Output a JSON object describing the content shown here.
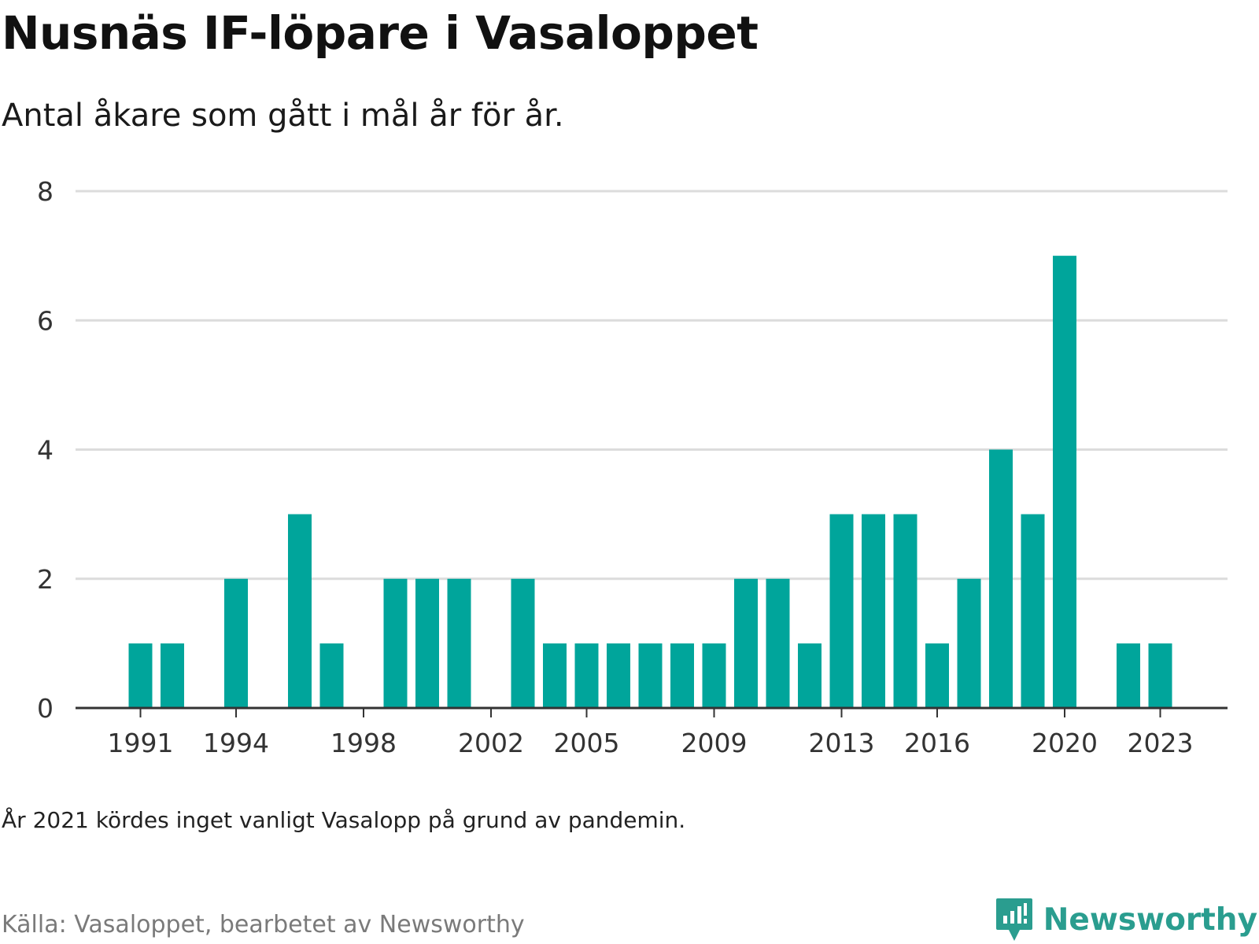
{
  "title": "Nusnäs IF-löpare i Vasaloppet",
  "subtitle": "Antal åkare som gått i mål år för år.",
  "note": "År 2021 kördes inget vanligt Vasalopp på grund av pandemin.",
  "source": "Källa: Vasaloppet, bearbetet av Newsworthy",
  "brand": {
    "name": "Newsworthy",
    "icon": "newsworthy-logo-icon"
  },
  "colors": {
    "bar": "#00a59b",
    "grid": "#dcdcdc",
    "axis": "#333333",
    "brand": "#2a9d8f"
  },
  "chart_data": {
    "type": "bar",
    "title": "Nusnäs IF-löpare i Vasaloppet",
    "subtitle": "Antal åkare som gått i mål år för år.",
    "xlabel": "",
    "ylabel": "",
    "ylim": [
      0,
      8
    ],
    "yticks": [
      0,
      2,
      4,
      6,
      8
    ],
    "xticks": [
      1991,
      1994,
      1998,
      2002,
      2005,
      2009,
      2013,
      2016,
      2020,
      2023
    ],
    "grid": true,
    "legend": "none",
    "categories": [
      1990,
      1991,
      1992,
      1993,
      1994,
      1995,
      1996,
      1997,
      1998,
      1999,
      2000,
      2001,
      2002,
      2003,
      2004,
      2005,
      2006,
      2007,
      2008,
      2009,
      2010,
      2011,
      2012,
      2013,
      2014,
      2015,
      2016,
      2017,
      2018,
      2019,
      2020,
      2021,
      2022,
      2023,
      2024
    ],
    "values": [
      0,
      1,
      1,
      0,
      2,
      0,
      3,
      1,
      0,
      2,
      2,
      2,
      0,
      2,
      1,
      1,
      1,
      1,
      1,
      1,
      2,
      2,
      1,
      3,
      3,
      3,
      1,
      2,
      4,
      3,
      7,
      0,
      1,
      1,
      0
    ]
  }
}
